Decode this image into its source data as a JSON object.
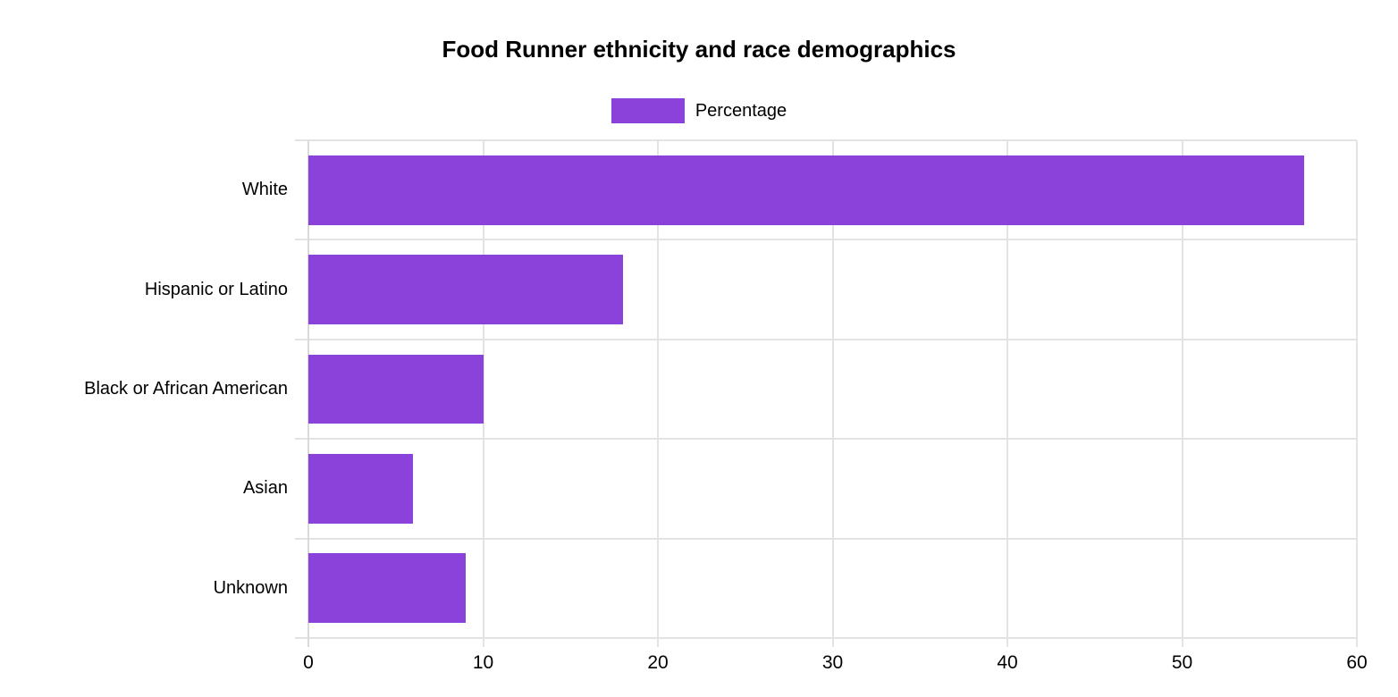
{
  "chart_data": {
    "type": "bar",
    "orientation": "horizontal",
    "title": "Food Runner ethnicity and race demographics",
    "legend": {
      "position": "top",
      "label": "Percentage"
    },
    "categories": [
      "White",
      "Hispanic or Latino",
      "Black or African American",
      "Asian",
      "Unknown"
    ],
    "series": [
      {
        "name": "Percentage",
        "values": [
          57,
          18,
          10,
          6,
          9
        ]
      }
    ],
    "xlabel": "",
    "ylabel": "",
    "xlim": [
      0,
      60
    ],
    "x_ticks": [
      0,
      10,
      20,
      30,
      40,
      50,
      60
    ],
    "grid": true,
    "colors": {
      "bar_fill": "#8A42DB",
      "bar_border": "rgba(138,66,219,0.45)",
      "gridline": "#E3E3E3",
      "axis_line": "#DADADA",
      "text": "#000000",
      "background": "#FFFFFF"
    }
  }
}
